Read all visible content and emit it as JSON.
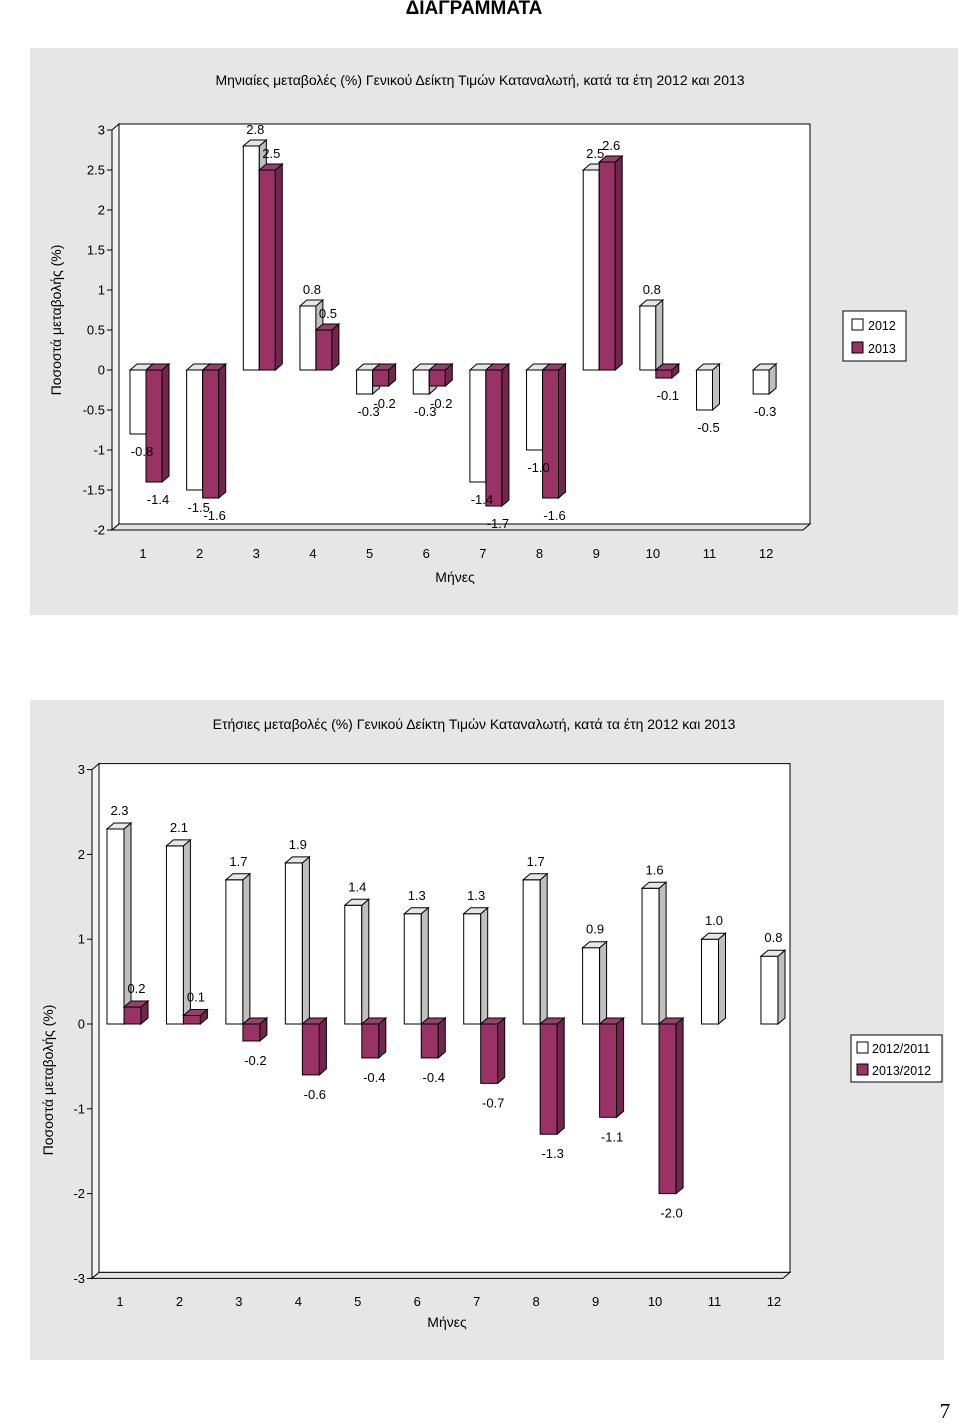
{
  "page": {
    "heading": "ΔΙΑΓΡΑΜΜΑΤΑ",
    "page_number": "7"
  },
  "colors": {
    "panel_background": "#e6e6e6",
    "legend_background": "#ffffff",
    "outline": "#000000"
  },
  "chart_data": [
    {
      "type": "bar",
      "title": "Μηνιαίες μεταβολές (%) Γενικού Δείκτη Τιμών Καταναλωτή, κατά τα έτη 2012 και 2013",
      "xlabel": "Μήνες",
      "ylabel": "Ποσοστά μεταβολής (%)",
      "categories": [
        "1",
        "2",
        "3",
        "4",
        "5",
        "6",
        "7",
        "8",
        "9",
        "10",
        "11",
        "12"
      ],
      "y_ticks": [
        "3",
        "2.5",
        "2",
        "1.5",
        "1",
        "0.5",
        "0",
        "-0.5",
        "-1",
        "-1.5",
        "-2"
      ],
      "ylim": [
        -2,
        3
      ],
      "grid": false,
      "legend_position": "right",
      "data_labels": true,
      "series": [
        {
          "name": "2012",
          "color": "#ffffff",
          "values": [
            -0.8,
            -1.5,
            2.8,
            0.8,
            -0.3,
            -0.3,
            -1.4,
            -1.0,
            2.5,
            0.8,
            -0.5,
            -0.3
          ]
        },
        {
          "name": "2013",
          "color": "#993366",
          "values": [
            -1.4,
            -1.6,
            2.5,
            0.5,
            -0.2,
            -0.2,
            -1.7,
            -1.6,
            2.6,
            -0.1,
            null,
            null
          ]
        }
      ]
    },
    {
      "type": "bar",
      "title": "Ετήσιες μεταβολές (%) Γενικού Δείκτη Τιμών Καταναλωτή, κατά τα έτη 2012 και 2013",
      "xlabel": "Μήνες",
      "ylabel": "Ποσοστά μεταβολής (%)",
      "categories": [
        "1",
        "2",
        "3",
        "4",
        "5",
        "6",
        "7",
        "8",
        "9",
        "10",
        "11",
        "12"
      ],
      "y_ticks": [
        "3",
        "2",
        "1",
        "0",
        "-1",
        "-2",
        "-3"
      ],
      "ylim": [
        -3,
        3
      ],
      "grid": false,
      "legend_position": "right",
      "data_labels": true,
      "series": [
        {
          "name": "2012/2011",
          "color": "#ffffff",
          "values": [
            2.3,
            2.1,
            1.7,
            1.9,
            1.4,
            1.3,
            1.3,
            1.7,
            0.9,
            1.6,
            1.0,
            0.8
          ]
        },
        {
          "name": "2013/2012",
          "color": "#993366",
          "values": [
            0.2,
            0.1,
            -0.2,
            -0.6,
            -0.4,
            -0.4,
            -0.7,
            -1.3,
            -1.1,
            -2.0,
            null,
            null
          ]
        }
      ]
    }
  ]
}
